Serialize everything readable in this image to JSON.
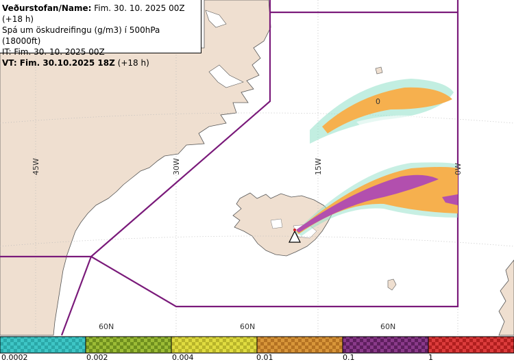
{
  "header": {
    "line1_bold": "Veðurstofan/Name:",
    "line1_rest": " Fim. 30. 10. 2025 00Z (+18 h)",
    "line2": "Spá um öskudreifingu (g/m3) í 500hPa (18000ft)",
    "line3": "IT: Fim. 30. 10. 2025 00Z",
    "line4_bold": "VT: Fim. 30.10.2025 18Z",
    "line4_rest": " (+18 h)"
  },
  "map": {
    "longitude_labels": [
      "45W",
      "30W",
      "15W",
      "0W"
    ],
    "latitude_labels": [
      "60N",
      "60N",
      "60N"
    ],
    "contour_label": "0",
    "colors": {
      "land": "#efdfd0",
      "sea": "#ffffff",
      "boundary": "#7a1a7a",
      "grid": "#bbbbbb",
      "ash_low": "#f6b04e",
      "ash_high": "#b24fae",
      "ash_fringe": "#8fe0c8"
    },
    "volcano_icon": "volcano-triangle-icon"
  },
  "legend": {
    "labels": [
      "0.0002",
      "0.002",
      "0.004",
      "0.01",
      "0.1",
      "1"
    ],
    "colors": [
      "#3ec6c6",
      "#8fb02e",
      "#d6d236",
      "#cf8a2c",
      "#7d2a7d",
      "#d23232"
    ]
  }
}
